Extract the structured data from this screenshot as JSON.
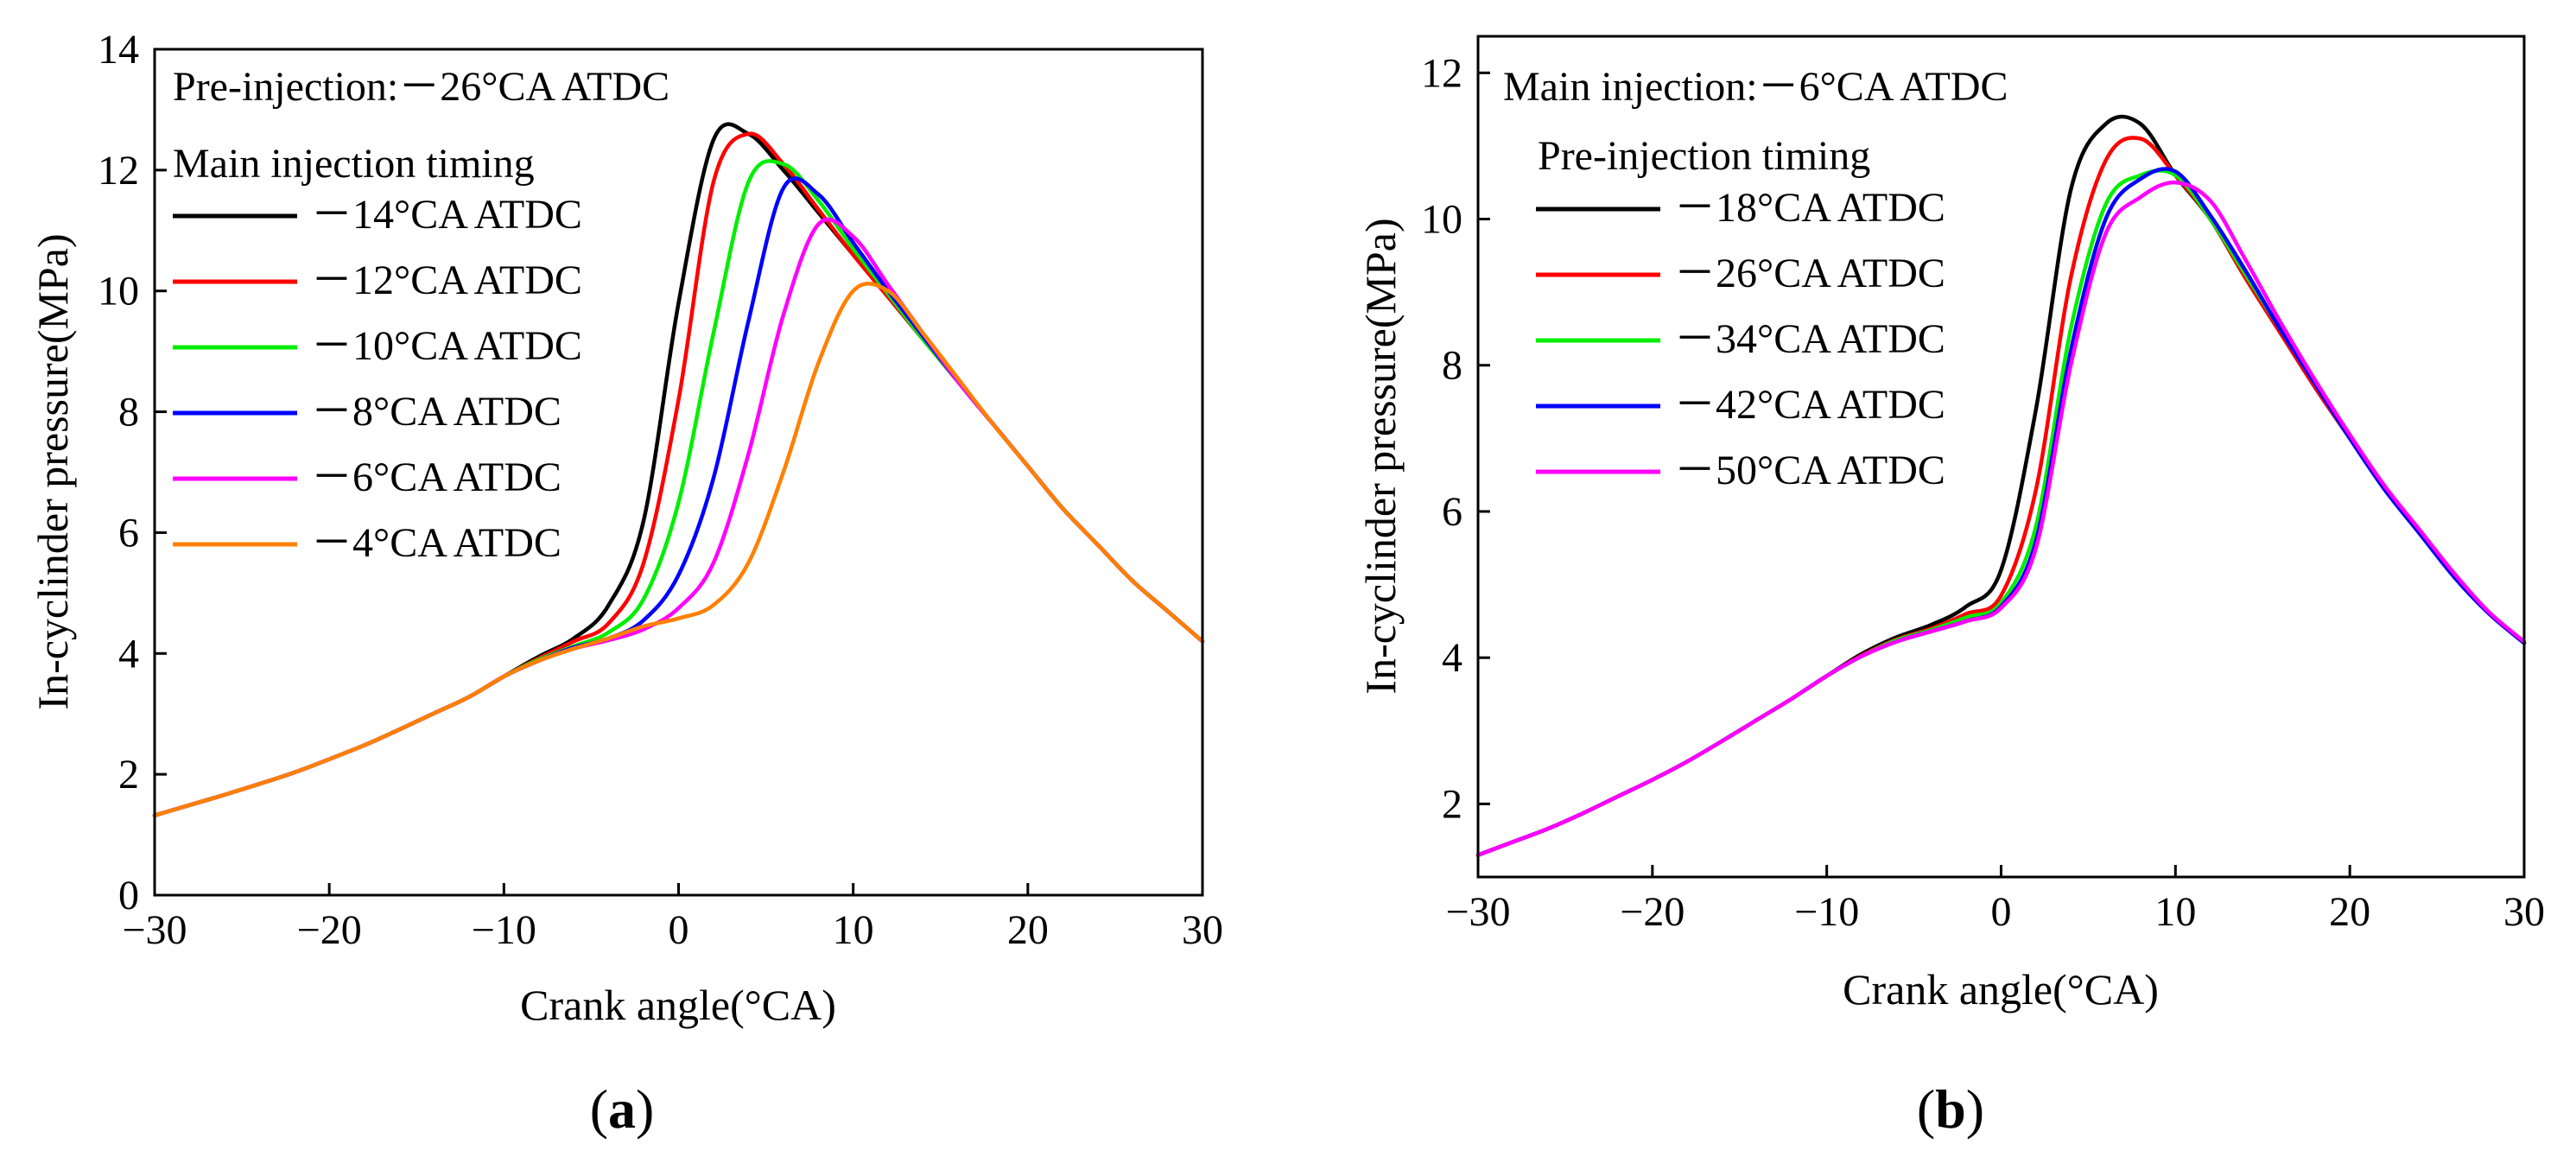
{
  "chart_data": [
    {
      "type": "line",
      "panel": "(a)",
      "panel_letter": "a",
      "xlabel": "Crank angle(°CA)",
      "ylabel": "In-cyclinder pressure(MPa)",
      "xlim": [
        -30,
        30
      ],
      "ylim": [
        0,
        14
      ],
      "xticks": [
        -30,
        -20,
        -10,
        0,
        10,
        20,
        30
      ],
      "xtick_labels": [
        "−30",
        "−20",
        "−10",
        "0",
        "10",
        "20",
        "30"
      ],
      "yticks": [
        0,
        2,
        4,
        6,
        8,
        10,
        12,
        14
      ],
      "legend_heading_1": "Pre-injection:－26°CA ATDC",
      "legend_heading_2": "Main injection timing",
      "legend_placement": "top-left",
      "x": [
        -30,
        -28,
        -26,
        -24,
        -22,
        -20,
        -18,
        -16,
        -14,
        -12,
        -10,
        -8,
        -6,
        -4,
        -2,
        0,
        2,
        4,
        6,
        8,
        10,
        12,
        14,
        16,
        18,
        20,
        22,
        24,
        26,
        28,
        30
      ],
      "series": [
        {
          "name": "－14°CA ATDC",
          "color": "#000000",
          "values": [
            1.32,
            1.49,
            1.66,
            1.84,
            2.03,
            2.25,
            2.48,
            2.74,
            3.01,
            3.28,
            3.62,
            3.95,
            4.25,
            4.8,
            6.2,
            9.8,
            12.5,
            12.6,
            12.0,
            11.3,
            10.6,
            9.9,
            9.2,
            8.5,
            7.8,
            7.1,
            6.4,
            5.8,
            5.2,
            4.7,
            4.2
          ]
        },
        {
          "name": "－12°CA ATDC",
          "color": "#ff0000",
          "values": [
            1.32,
            1.49,
            1.66,
            1.84,
            2.03,
            2.25,
            2.48,
            2.74,
            3.01,
            3.28,
            3.62,
            3.92,
            4.2,
            4.5,
            5.5,
            8.2,
            11.8,
            12.6,
            12.1,
            11.35,
            10.6,
            9.9,
            9.2,
            8.5,
            7.8,
            7.1,
            6.4,
            5.8,
            5.2,
            4.7,
            4.2
          ]
        },
        {
          "name": "－10°CA ATDC",
          "color": "#00ee00",
          "values": [
            1.32,
            1.49,
            1.66,
            1.84,
            2.03,
            2.25,
            2.48,
            2.74,
            3.01,
            3.28,
            3.62,
            3.9,
            4.12,
            4.35,
            4.9,
            6.5,
            9.3,
            11.8,
            12.1,
            11.5,
            10.7,
            9.95,
            9.2,
            8.5,
            7.8,
            7.1,
            6.4,
            5.8,
            5.2,
            4.7,
            4.2
          ]
        },
        {
          "name": "－8°CA ATDC",
          "color": "#0000ff",
          "values": [
            1.32,
            1.49,
            1.66,
            1.84,
            2.03,
            2.25,
            2.48,
            2.74,
            3.01,
            3.28,
            3.62,
            3.88,
            4.1,
            4.25,
            4.55,
            5.3,
            6.9,
            9.5,
            11.7,
            11.6,
            10.8,
            10.0,
            9.25,
            8.5,
            7.8,
            7.1,
            6.4,
            5.8,
            5.2,
            4.7,
            4.2
          ]
        },
        {
          "name": "－6°CA ATDC",
          "color": "#ff00ff",
          "values": [
            1.32,
            1.49,
            1.66,
            1.84,
            2.03,
            2.25,
            2.48,
            2.74,
            3.01,
            3.28,
            3.62,
            3.88,
            4.08,
            4.22,
            4.4,
            4.75,
            5.5,
            7.3,
            9.6,
            11.1,
            10.9,
            10.1,
            9.3,
            8.5,
            7.8,
            7.1,
            6.4,
            5.8,
            5.2,
            4.7,
            4.2
          ]
        },
        {
          "name": "－4°CA ATDC",
          "color": "#ff8000",
          "values": [
            1.32,
            1.49,
            1.66,
            1.84,
            2.03,
            2.25,
            2.48,
            2.74,
            3.01,
            3.28,
            3.62,
            3.88,
            4.08,
            4.25,
            4.45,
            4.58,
            4.8,
            5.5,
            7.0,
            8.8,
            10.0,
            10.0,
            9.3,
            8.55,
            7.8,
            7.1,
            6.4,
            5.8,
            5.2,
            4.7,
            4.2
          ]
        }
      ]
    },
    {
      "type": "line",
      "panel": "(b)",
      "panel_letter": "b",
      "xlabel": "Crank angle(°CA)",
      "ylabel": "In-cyclinder pressure(MPa)",
      "xlim": [
        -30,
        30
      ],
      "ylim": [
        1,
        12.5
      ],
      "xticks": [
        -30,
        -20,
        -10,
        0,
        10,
        20,
        30
      ],
      "xtick_labels": [
        "−30",
        "−20",
        "−10",
        "0",
        "10",
        "20",
        "30"
      ],
      "yticks": [
        2,
        4,
        6,
        8,
        10,
        12
      ],
      "legend_heading_1": "Main injection:－6°CA ATDC",
      "legend_heading_2": "Pre-injection timing",
      "legend_placement": "top-left",
      "x": [
        -30,
        -28,
        -26,
        -24,
        -22,
        -20,
        -18,
        -16,
        -14,
        -12,
        -10,
        -8,
        -6,
        -4,
        -2,
        0,
        2,
        4,
        6,
        8,
        10,
        12,
        14,
        16,
        18,
        20,
        22,
        24,
        26,
        28,
        30
      ],
      "series": [
        {
          "name": "－18°CA ATDC",
          "color": "#000000",
          "values": [
            1.3,
            1.48,
            1.66,
            1.87,
            2.1,
            2.33,
            2.58,
            2.86,
            3.15,
            3.44,
            3.75,
            4.05,
            4.28,
            4.45,
            4.7,
            5.2,
            7.4,
            10.4,
            11.3,
            11.3,
            10.6,
            10.0,
            9.2,
            8.45,
            7.7,
            7.0,
            6.3,
            5.7,
            5.1,
            4.6,
            4.2
          ]
        },
        {
          "name": "－26°CA ATDC",
          "color": "#ff0000",
          "values": [
            1.3,
            1.48,
            1.66,
            1.87,
            2.1,
            2.33,
            2.58,
            2.86,
            3.15,
            3.44,
            3.75,
            4.03,
            4.25,
            4.4,
            4.6,
            4.85,
            6.3,
            9.2,
            10.8,
            11.1,
            10.6,
            10.0,
            9.2,
            8.45,
            7.7,
            7.0,
            6.3,
            5.7,
            5.1,
            4.6,
            4.2
          ]
        },
        {
          "name": "－34°CA ATDC",
          "color": "#00ee00",
          "values": [
            1.3,
            1.48,
            1.66,
            1.87,
            2.1,
            2.33,
            2.58,
            2.86,
            3.15,
            3.44,
            3.75,
            4.02,
            4.24,
            4.38,
            4.55,
            4.75,
            5.8,
            8.5,
            10.2,
            10.6,
            10.6,
            10.0,
            9.25,
            8.5,
            7.75,
            7.0,
            6.3,
            5.7,
            5.1,
            4.6,
            4.2
          ]
        },
        {
          "name": "－42°CA ATDC",
          "color": "#0000ff",
          "values": [
            1.3,
            1.48,
            1.66,
            1.87,
            2.1,
            2.33,
            2.58,
            2.86,
            3.15,
            3.44,
            3.75,
            4.02,
            4.22,
            4.36,
            4.5,
            4.7,
            5.6,
            8.2,
            10.0,
            10.55,
            10.65,
            10.05,
            9.3,
            8.5,
            7.75,
            7.0,
            6.3,
            5.7,
            5.1,
            4.6,
            4.2
          ]
        },
        {
          "name": "－50°CA ATDC",
          "color": "#ff00ff",
          "values": [
            1.3,
            1.48,
            1.66,
            1.87,
            2.1,
            2.33,
            2.58,
            2.86,
            3.15,
            3.44,
            3.75,
            4.02,
            4.22,
            4.36,
            4.5,
            4.68,
            5.5,
            8.0,
            9.8,
            10.3,
            10.5,
            10.25,
            9.45,
            8.6,
            7.8,
            7.05,
            6.35,
            5.75,
            5.15,
            4.62,
            4.22
          ]
        }
      ]
    }
  ]
}
